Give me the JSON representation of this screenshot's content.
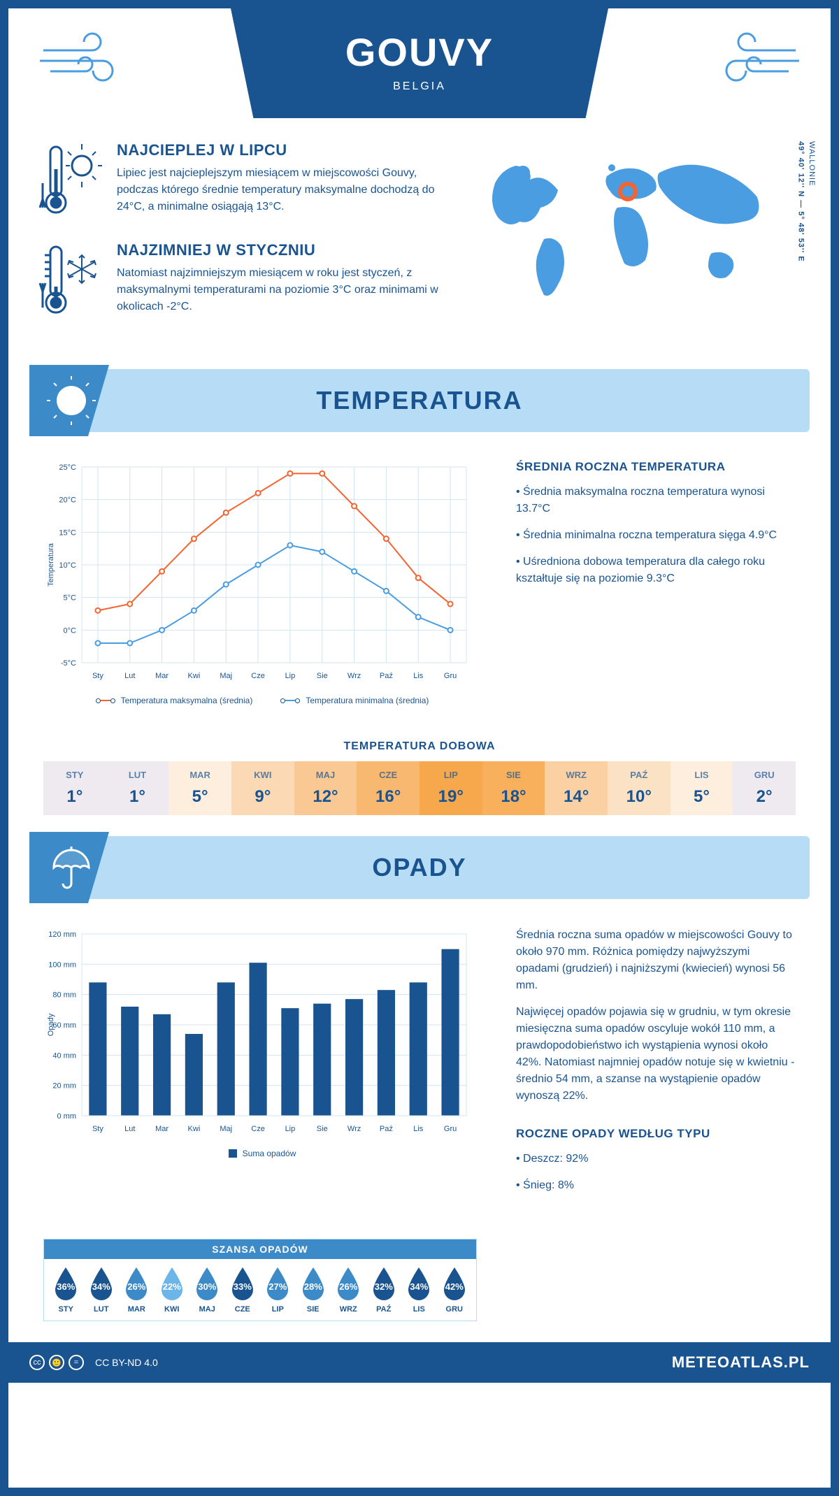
{
  "header": {
    "city": "GOUVY",
    "country": "BELGIA"
  },
  "coords": {
    "region": "WALLONIE",
    "lat": "49° 40' 12'' N",
    "lon": "5° 48' 53'' E"
  },
  "warmest": {
    "title": "NAJCIEPLEJ W LIPCU",
    "text": "Lipiec jest najcieplejszym miesiącem w miejscowości Gouvy, podczas którego średnie temperatury maksymalne dochodzą do 24°C, a minimalne osiągają 13°C."
  },
  "coldest": {
    "title": "NAJZIMNIEJ W STYCZNIU",
    "text": "Natomiast najzimniejszym miesiącem w roku jest styczeń, z maksymalnymi temperaturami na poziomie 3°C oraz minimami w okolicach -2°C."
  },
  "temp_section": {
    "title": "TEMPERATURA",
    "chart": {
      "type": "line",
      "months": [
        "Sty",
        "Lut",
        "Mar",
        "Kwi",
        "Maj",
        "Cze",
        "Lip",
        "Sie",
        "Wrz",
        "Paź",
        "Lis",
        "Gru"
      ],
      "max_series": [
        3,
        4,
        9,
        14,
        18,
        21,
        24,
        24,
        19,
        14,
        8,
        4
      ],
      "min_series": [
        -2,
        -2,
        0,
        3,
        7,
        10,
        13,
        12,
        9,
        6,
        2,
        0
      ],
      "max_color": "#f26430",
      "min_color": "#4a9de0",
      "ylim": [
        -5,
        25
      ],
      "ytick_step": 5,
      "ylabel": "Temperatura",
      "grid_color": "#d0e4f2",
      "background_color": "#ffffff",
      "axis_fontsize": 11,
      "line_width": 2,
      "marker": "circle",
      "legend_max": "Temperatura maksymalna (średnia)",
      "legend_min": "Temperatura minimalna (średnia)"
    },
    "annual": {
      "title": "ŚREDNIA ROCZNA TEMPERATURA",
      "p1": "• Średnia maksymalna roczna temperatura wynosi 13.7°C",
      "p2": "• Średnia minimalna roczna temperatura sięga 4.9°C",
      "p3": "• Uśredniona dobowa temperatura dla całego roku kształtuje się na poziomie 9.3°C"
    },
    "daily": {
      "title": "TEMPERATURA DOBOWA",
      "months": [
        "STY",
        "LUT",
        "MAR",
        "KWI",
        "MAJ",
        "CZE",
        "LIP",
        "SIE",
        "WRZ",
        "PAŹ",
        "LIS",
        "GRU"
      ],
      "values": [
        "1°",
        "1°",
        "5°",
        "9°",
        "12°",
        "16°",
        "19°",
        "18°",
        "14°",
        "10°",
        "5°",
        "2°"
      ],
      "cell_colors": [
        "#eeeaf0",
        "#eeeaf0",
        "#fdeedd",
        "#fbd9b5",
        "#fac892",
        "#f9b86f",
        "#f7a74c",
        "#f8b05d",
        "#fbd0a2",
        "#fce2c4",
        "#fdeedd",
        "#eeeaf0"
      ],
      "text_color": "#1a5490"
    }
  },
  "precip_section": {
    "title": "OPADY",
    "chart": {
      "type": "bar",
      "months": [
        "Sty",
        "Lut",
        "Mar",
        "Kwi",
        "Maj",
        "Cze",
        "Lip",
        "Sie",
        "Wrz",
        "Paź",
        "Lis",
        "Gru"
      ],
      "values": [
        88,
        72,
        67,
        54,
        88,
        101,
        71,
        74,
        77,
        83,
        88,
        110
      ],
      "bar_color": "#1a5490",
      "ylim": [
        0,
        120
      ],
      "ytick_step": 20,
      "ylabel": "Opady",
      "unit": "mm",
      "grid_color": "#d0e4f2",
      "bar_width": 0.55,
      "legend": "Suma opadów"
    },
    "text": {
      "p1": "Średnia roczna suma opadów w miejscowości Gouvy to około 970 mm. Różnica pomiędzy najwyższymi opadami (grudzień) i najniższymi (kwiecień) wynosi 56 mm.",
      "p2": "Najwięcej opadów pojawia się w grudniu, w tym okresie miesięczna suma opadów oscyluje wokół 110 mm, a prawdopodobieństwo ich wystąpienia wynosi około 42%. Natomiast najmniej opadów notuje się w kwietniu - średnio 54 mm, a szanse na wystąpienie opadów wynoszą 22%."
    },
    "chance": {
      "title": "SZANSA OPADÓW",
      "months": [
        "STY",
        "LUT",
        "MAR",
        "KWI",
        "MAJ",
        "CZE",
        "LIP",
        "SIE",
        "WRZ",
        "PAŹ",
        "LIS",
        "GRU"
      ],
      "values": [
        "36%",
        "34%",
        "26%",
        "22%",
        "30%",
        "33%",
        "27%",
        "28%",
        "26%",
        "32%",
        "34%",
        "42%"
      ],
      "drop_colors": [
        "#1a5490",
        "#1a5490",
        "#3c8bc8",
        "#6bb5e8",
        "#3c8bc8",
        "#1a5490",
        "#3c8bc8",
        "#3c8bc8",
        "#3c8bc8",
        "#1a5490",
        "#1a5490",
        "#1a5490"
      ]
    },
    "by_type": {
      "title": "ROCZNE OPADY WEDŁUG TYPU",
      "rain": "• Deszcz: 92%",
      "snow": "• Śnieg: 8%"
    }
  },
  "footer": {
    "license": "CC BY-ND 4.0",
    "logo": "METEOATLAS.PL"
  }
}
